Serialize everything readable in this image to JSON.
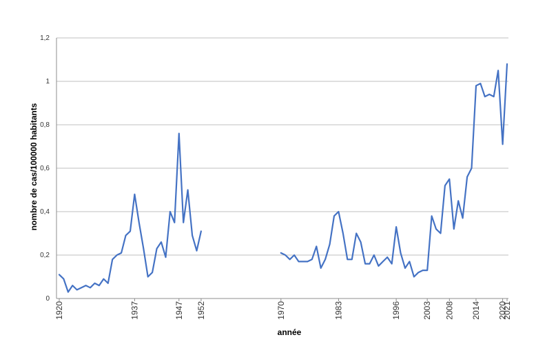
{
  "chart_data": {
    "type": "line",
    "title": "",
    "xlabel": "année",
    "ylabel": "nombre de cas/100000 habitants",
    "ylim": [
      0,
      1.2
    ],
    "xlim": [
      1920,
      2021
    ],
    "y_ticks": [
      {
        "value": 0,
        "label": "0"
      },
      {
        "value": 0.2,
        "label": "0,2"
      },
      {
        "value": 0.4,
        "label": "0,4"
      },
      {
        "value": 0.6,
        "label": "0,6"
      },
      {
        "value": 0.8,
        "label": "0,8"
      },
      {
        "value": 1.0,
        "label": "1"
      },
      {
        "value": 1.2,
        "label": "1,2"
      }
    ],
    "x_ticks": [
      {
        "value": 1920,
        "label": "1920"
      },
      {
        "value": 1937,
        "label": "1937"
      },
      {
        "value": 1947,
        "label": "1947"
      },
      {
        "value": 1952,
        "label": "1952"
      },
      {
        "value": 1970,
        "label": "1970"
      },
      {
        "value": 1983,
        "label": "1983"
      },
      {
        "value": 1996,
        "label": "1996"
      },
      {
        "value": 2003,
        "label": "2003"
      },
      {
        "value": 2008,
        "label": "2008"
      },
      {
        "value": 2014,
        "label": "2014"
      },
      {
        "value": 2020,
        "label": "2020"
      },
      {
        "value": 2021,
        "label": "2021"
      }
    ],
    "grid": true,
    "color": "#4472C4",
    "series": [
      {
        "name": "",
        "segments": [
          {
            "x": [
              1920,
              1921,
              1922,
              1923,
              1924,
              1925,
              1926,
              1927,
              1928,
              1929,
              1930,
              1931,
              1932,
              1933,
              1934,
              1935,
              1936,
              1937,
              1938,
              1939,
              1940,
              1941,
              1942,
              1943,
              1944,
              1945,
              1946,
              1947,
              1948,
              1949,
              1950,
              1951,
              1952
            ],
            "y": [
              0.11,
              0.09,
              0.03,
              0.06,
              0.04,
              0.05,
              0.06,
              0.05,
              0.07,
              0.06,
              0.09,
              0.07,
              0.18,
              0.2,
              0.21,
              0.29,
              0.31,
              0.48,
              0.35,
              0.23,
              0.1,
              0.12,
              0.23,
              0.26,
              0.19,
              0.4,
              0.35,
              0.76,
              0.35,
              0.5,
              0.29,
              0.22,
              0.31
            ]
          },
          {
            "x": [
              1970,
              1971,
              1972,
              1973,
              1974,
              1975,
              1976,
              1977,
              1978,
              1979,
              1980,
              1981,
              1982,
              1983,
              1984,
              1985,
              1986,
              1987,
              1988,
              1989,
              1990,
              1991,
              1992,
              1993,
              1994,
              1995,
              1996,
              1997,
              1998,
              1999,
              2000,
              2001,
              2002,
              2003,
              2004,
              2005,
              2006,
              2007,
              2008,
              2009,
              2010,
              2011,
              2012,
              2013,
              2014,
              2015,
              2016,
              2017,
              2018,
              2019,
              2020,
              2021
            ],
            "y": [
              0.21,
              0.2,
              0.18,
              0.2,
              0.17,
              0.17,
              0.17,
              0.18,
              0.24,
              0.14,
              0.18,
              0.25,
              0.38,
              0.4,
              0.3,
              0.18,
              0.18,
              0.3,
              0.26,
              0.16,
              0.16,
              0.2,
              0.15,
              0.17,
              0.19,
              0.16,
              0.33,
              0.21,
              0.14,
              0.17,
              0.1,
              0.12,
              0.13,
              0.13,
              0.38,
              0.32,
              0.3,
              0.52,
              0.55,
              0.32,
              0.45,
              0.37,
              0.56,
              0.6,
              0.98,
              0.99,
              0.93,
              0.94,
              0.93,
              1.05,
              0.71,
              1.08
            ]
          }
        ]
      }
    ]
  }
}
